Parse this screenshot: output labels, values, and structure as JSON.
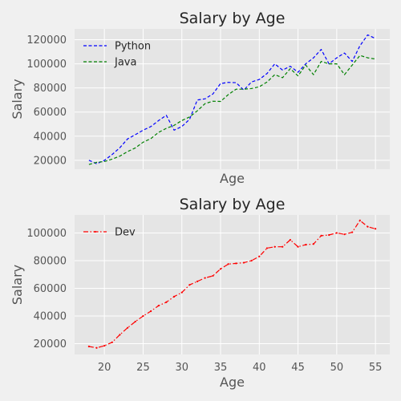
{
  "chart_data": [
    {
      "type": "line",
      "title": "Salary by Age",
      "xlabel": "Age",
      "ylabel": "Salary",
      "xlim": [
        16.15,
        56.85
      ],
      "ylim": [
        12600,
        129000
      ],
      "x": [
        18,
        19,
        20,
        21,
        22,
        23,
        24,
        25,
        26,
        27,
        28,
        29,
        30,
        31,
        32,
        33,
        34,
        35,
        36,
        37,
        38,
        39,
        40,
        41,
        42,
        43,
        44,
        45,
        46,
        47,
        48,
        49,
        50,
        51,
        52,
        53,
        54,
        55
      ],
      "xticks": [
        20,
        25,
        30,
        35,
        40,
        45,
        50,
        55
      ],
      "yticks": [
        20000,
        40000,
        60000,
        80000,
        100000,
        120000
      ],
      "ytick_labels": [
        "20000",
        "40000",
        "60000",
        "80000",
        "100000",
        "120000"
      ],
      "show_xtick_labels": false,
      "grid": true,
      "legend": "top-left",
      "series": [
        {
          "name": "Python",
          "color": "#0000ff",
          "linestyle": "dashed",
          "values": [
            20046,
            17100,
            20000,
            24744,
            30500,
            37732,
            41240,
            45000,
            48000,
            53000,
            57287,
            45000,
            48000,
            54000,
            70000,
            71000,
            75000,
            83640,
            84666,
            84392,
            78254,
            85000,
            87038,
            91991,
            100000,
            94796,
            98000,
            93000,
            100000,
            105000,
            112000,
            100000,
            105000,
            109000,
            102000,
            115000,
            124000,
            121000
          ]
        },
        {
          "name": "Java",
          "color": "#008000",
          "linestyle": "dashed",
          "values": [
            16500,
            18300,
            19000,
            21000,
            23500,
            27200,
            30300,
            35000,
            38000,
            43200,
            46500,
            49000,
            53000,
            56000,
            61000,
            67000,
            69000,
            68800,
            74500,
            79000,
            79000,
            79500,
            81000,
            85000,
            91000,
            88500,
            96000,
            90000,
            99000,
            91000,
            102000,
            100000,
            100000,
            91000,
            99000,
            107000,
            105000,
            104000
          ]
        }
      ]
    },
    {
      "type": "line",
      "title": "Salary by Age",
      "xlabel": "Age",
      "ylabel": "Salary",
      "xlim": [
        16.15,
        56.85
      ],
      "ylim": [
        12200,
        113000
      ],
      "x": [
        18,
        19,
        20,
        21,
        22,
        23,
        24,
        25,
        26,
        27,
        28,
        29,
        30,
        31,
        32,
        33,
        34,
        35,
        36,
        37,
        38,
        39,
        40,
        41,
        42,
        43,
        44,
        45,
        46,
        47,
        48,
        49,
        50,
        51,
        52,
        53,
        54,
        55
      ],
      "xticks": [
        20,
        25,
        30,
        35,
        40,
        45,
        50,
        55
      ],
      "xtick_labels": [
        "20",
        "25",
        "30",
        "35",
        "40",
        "45",
        "50",
        "55"
      ],
      "yticks": [
        20000,
        40000,
        60000,
        80000,
        100000
      ],
      "ytick_labels": [
        "20000",
        "40000",
        "60000",
        "80000",
        "100000"
      ],
      "show_xtick_labels": true,
      "grid": true,
      "legend": "top-left",
      "series": [
        {
          "name": "Dev",
          "color": "#ff0000",
          "linestyle": "dashdot",
          "marker": "dot",
          "values": [
            18000,
            17000,
            18500,
            21000,
            26500,
            31500,
            36000,
            40000,
            43500,
            47500,
            50000,
            54000,
            57000,
            62500,
            65000,
            67500,
            69000,
            74000,
            77500,
            78000,
            78500,
            80000,
            83000,
            89000,
            90000,
            90000,
            95000,
            90000,
            91500,
            92000,
            98000,
            98500,
            100000,
            99000,
            100500,
            109000,
            104500,
            103000
          ]
        }
      ]
    }
  ]
}
